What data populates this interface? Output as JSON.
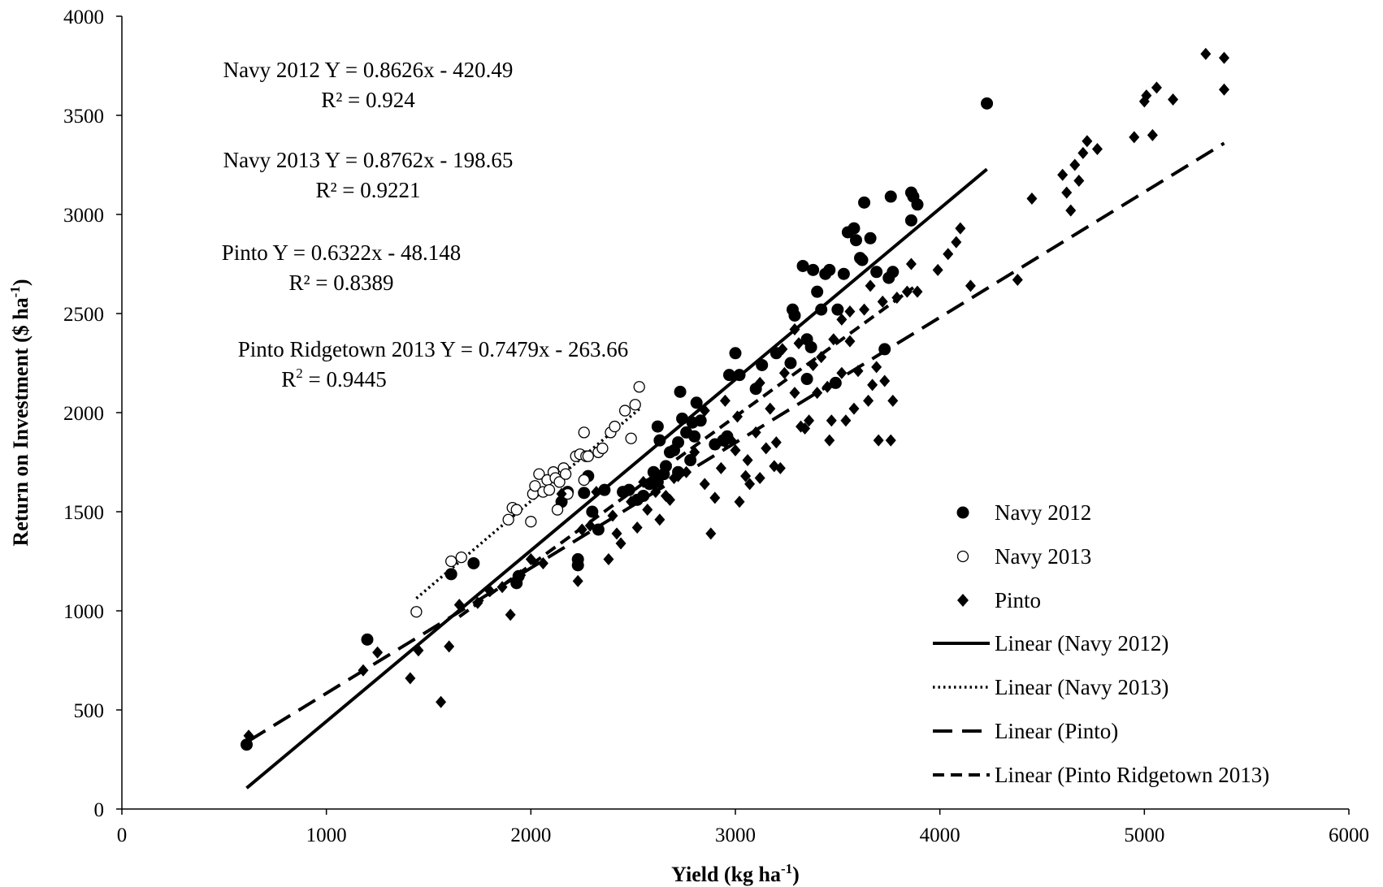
{
  "chart_data": {
    "type": "scatter",
    "title": "",
    "xlabel": "Yield (kg ha",
    "xlabel_sup": "-1",
    "xlabel_end": ")",
    "ylabel": "Return on Investment ($ ha",
    "ylabel_sup": "-1",
    "ylabel_end": ")",
    "xlim": [
      0,
      6000
    ],
    "ylim": [
      0,
      4000
    ],
    "xticks": [
      "0",
      "1000",
      "2000",
      "3000",
      "4000",
      "5000",
      "6000"
    ],
    "yticks": [
      "0",
      "500",
      "1000",
      "1500",
      "2000",
      "2500",
      "3000",
      "3500",
      "4000"
    ],
    "grid": false,
    "legend_position": "bottom-right",
    "annotations": [
      {
        "line1": "Navy 2012 Y = 0.8626x - 420.49",
        "line2": "R² = 0.924"
      },
      {
        "line1": "Navy 2013 Y = 0.8762x - 198.65",
        "line2": "R² = 0.9221"
      },
      {
        "line1": "Pinto Y = 0.6322x - 48.148",
        "line2": "R² = 0.8389"
      },
      {
        "line1": "Pinto Ridgetown 2013 Y = 0.7479x - 263.66",
        "line2_pre": "R",
        "line2_sup": "2",
        "line2_post": " = 0.9445"
      }
    ],
    "series": [
      {
        "name": "Navy 2012",
        "marker": "filled-circle",
        "points": [
          [
            610,
            325
          ],
          [
            1200,
            855
          ],
          [
            1610,
            1185
          ],
          [
            1720,
            1240
          ],
          [
            1930,
            1140
          ],
          [
            1940,
            1175
          ],
          [
            2150,
            1550
          ],
          [
            2180,
            1600
          ],
          [
            2230,
            1260
          ],
          [
            2230,
            1230
          ],
          [
            2260,
            1595
          ],
          [
            2280,
            1680
          ],
          [
            2300,
            1500
          ],
          [
            2330,
            1410
          ],
          [
            2360,
            1610
          ],
          [
            2450,
            1600
          ],
          [
            2480,
            1610
          ],
          [
            2520,
            1560
          ],
          [
            2550,
            1580
          ],
          [
            2580,
            1640
          ],
          [
            2600,
            1700
          ],
          [
            2620,
            1650
          ],
          [
            2650,
            1690
          ],
          [
            2660,
            1730
          ],
          [
            2680,
            1800
          ],
          [
            2700,
            1810
          ],
          [
            2720,
            1850
          ],
          [
            2720,
            1700
          ],
          [
            2740,
            1970
          ],
          [
            2760,
            1900
          ],
          [
            2780,
            1760
          ],
          [
            2790,
            1950
          ],
          [
            2800,
            1880
          ],
          [
            2810,
            2050
          ],
          [
            2830,
            1960
          ],
          [
            2730,
            2105
          ],
          [
            2630,
            1860
          ],
          [
            2620,
            1930
          ],
          [
            2900,
            1840
          ],
          [
            2940,
            1860
          ],
          [
            2960,
            1880
          ],
          [
            2970,
            2190
          ],
          [
            3000,
            2300
          ],
          [
            3020,
            2190
          ],
          [
            3100,
            2120
          ],
          [
            3130,
            2240
          ],
          [
            3200,
            2300
          ],
          [
            3270,
            2250
          ],
          [
            3280,
            2520
          ],
          [
            3290,
            2490
          ],
          [
            3330,
            2740
          ],
          [
            3350,
            2170
          ],
          [
            3350,
            2370
          ],
          [
            3370,
            2330
          ],
          [
            3380,
            2720
          ],
          [
            3400,
            2610
          ],
          [
            3420,
            2520
          ],
          [
            3440,
            2700
          ],
          [
            3460,
            2720
          ],
          [
            3490,
            2150
          ],
          [
            3500,
            2520
          ],
          [
            3530,
            2700
          ],
          [
            3550,
            2910
          ],
          [
            3580,
            2930
          ],
          [
            3590,
            2870
          ],
          [
            3610,
            2780
          ],
          [
            3620,
            2770
          ],
          [
            3630,
            3060
          ],
          [
            3660,
            2880
          ],
          [
            3690,
            2710
          ],
          [
            3730,
            2320
          ],
          [
            3750,
            2680
          ],
          [
            3760,
            3090
          ],
          [
            3770,
            2710
          ],
          [
            3860,
            3110
          ],
          [
            3870,
            3090
          ],
          [
            3860,
            2970
          ],
          [
            3890,
            3050
          ],
          [
            4230,
            3560
          ]
        ]
      },
      {
        "name": "Navy 2013",
        "marker": "open-circle",
        "points": [
          [
            1440,
            995
          ],
          [
            1610,
            1250
          ],
          [
            1660,
            1270
          ],
          [
            1890,
            1460
          ],
          [
            1910,
            1520
          ],
          [
            1930,
            1510
          ],
          [
            2000,
            1450
          ],
          [
            2010,
            1590
          ],
          [
            2020,
            1630
          ],
          [
            2040,
            1690
          ],
          [
            2060,
            1600
          ],
          [
            2080,
            1660
          ],
          [
            2090,
            1610
          ],
          [
            2110,
            1700
          ],
          [
            2120,
            1670
          ],
          [
            2130,
            1510
          ],
          [
            2140,
            1650
          ],
          [
            2160,
            1720
          ],
          [
            2170,
            1690
          ],
          [
            2220,
            1780
          ],
          [
            2240,
            1790
          ],
          [
            2260,
            1900
          ],
          [
            2270,
            1780
          ],
          [
            2280,
            1780
          ],
          [
            2330,
            1800
          ],
          [
            2350,
            1820
          ],
          [
            2390,
            1900
          ],
          [
            2410,
            1930
          ],
          [
            2460,
            2010
          ],
          [
            2490,
            1870
          ],
          [
            2510,
            2040
          ],
          [
            2530,
            2130
          ],
          [
            2260,
            1660
          ],
          [
            2180,
            1590
          ]
        ]
      },
      {
        "name": "Pinto",
        "marker": "diamond",
        "points": [
          [
            620,
            370
          ],
          [
            1180,
            700
          ],
          [
            1250,
            790
          ],
          [
            1410,
            660
          ],
          [
            1450,
            800
          ],
          [
            1560,
            540
          ],
          [
            1600,
            820
          ],
          [
            1650,
            1030
          ],
          [
            1740,
            1040
          ],
          [
            1800,
            1100
          ],
          [
            1860,
            1120
          ],
          [
            1900,
            980
          ],
          [
            1950,
            1180
          ],
          [
            2000,
            1260
          ],
          [
            2060,
            1240
          ],
          [
            2150,
            1590
          ],
          [
            2230,
            1150
          ],
          [
            2250,
            1410
          ],
          [
            2290,
            1430
          ],
          [
            2320,
            1600
          ],
          [
            2380,
            1260
          ],
          [
            2400,
            1480
          ],
          [
            2420,
            1390
          ],
          [
            2440,
            1340
          ],
          [
            2460,
            1600
          ],
          [
            2490,
            1550
          ],
          [
            2520,
            1420
          ],
          [
            2550,
            1650
          ],
          [
            2570,
            1510
          ],
          [
            2610,
            1600
          ],
          [
            2630,
            1460
          ],
          [
            2660,
            1580
          ],
          [
            2680,
            1560
          ],
          [
            2720,
            1680
          ],
          [
            2760,
            1700
          ],
          [
            2800,
            1800
          ],
          [
            2850,
            1640
          ],
          [
            2880,
            1390
          ],
          [
            2900,
            1570
          ],
          [
            2930,
            1720
          ],
          [
            2950,
            1850
          ],
          [
            2980,
            1860
          ],
          [
            3000,
            1810
          ],
          [
            3020,
            1550
          ],
          [
            3050,
            1680
          ],
          [
            3060,
            1760
          ],
          [
            3070,
            1640
          ],
          [
            3100,
            1900
          ],
          [
            3120,
            1670
          ],
          [
            3150,
            1820
          ],
          [
            3170,
            2020
          ],
          [
            3190,
            1730
          ],
          [
            3200,
            1850
          ],
          [
            3220,
            1720
          ],
          [
            3240,
            2200
          ],
          [
            3290,
            2100
          ],
          [
            3320,
            1930
          ],
          [
            3340,
            1920
          ],
          [
            3360,
            1960
          ],
          [
            3380,
            2240
          ],
          [
            3400,
            2100
          ],
          [
            3420,
            2280
          ],
          [
            3450,
            2130
          ],
          [
            3460,
            1860
          ],
          [
            3470,
            1960
          ],
          [
            3520,
            2200
          ],
          [
            3540,
            1960
          ],
          [
            3560,
            2360
          ],
          [
            3600,
            2210
          ],
          [
            3630,
            2520
          ],
          [
            3650,
            2060
          ],
          [
            3670,
            2140
          ],
          [
            3690,
            2230
          ],
          [
            3700,
            1860
          ],
          [
            3730,
            2160
          ],
          [
            3760,
            1860
          ],
          [
            3770,
            2060
          ],
          [
            3790,
            2580
          ],
          [
            3840,
            2610
          ],
          [
            3860,
            2750
          ],
          [
            3890,
            2610
          ],
          [
            3990,
            2720
          ],
          [
            4040,
            2800
          ],
          [
            4080,
            2860
          ],
          [
            4100,
            2930
          ],
          [
            4150,
            2640
          ],
          [
            4380,
            2670
          ],
          [
            4450,
            3080
          ],
          [
            4600,
            3200
          ],
          [
            4620,
            3110
          ],
          [
            4640,
            3020
          ],
          [
            4660,
            3250
          ],
          [
            4680,
            3170
          ],
          [
            4700,
            3310
          ],
          [
            4720,
            3370
          ],
          [
            4770,
            3330
          ],
          [
            4950,
            3390
          ],
          [
            5000,
            3570
          ],
          [
            5010,
            3600
          ],
          [
            5040,
            3400
          ],
          [
            5060,
            3640
          ],
          [
            5140,
            3580
          ],
          [
            5300,
            3810
          ],
          [
            5390,
            3790
          ],
          [
            5390,
            3630
          ],
          [
            2950,
            2060
          ],
          [
            3010,
            1980
          ],
          [
            2850,
            2010
          ],
          [
            3120,
            2150
          ],
          [
            3230,
            2320
          ],
          [
            3290,
            2420
          ],
          [
            3310,
            2350
          ],
          [
            3480,
            2370
          ],
          [
            3520,
            2470
          ],
          [
            3560,
            2510
          ],
          [
            3660,
            2640
          ],
          [
            3720,
            2560
          ],
          [
            3580,
            2020
          ],
          [
            2700,
            1670
          ]
        ]
      }
    ],
    "trendlines": [
      {
        "name": "Linear (Navy 2012)",
        "style": "solid",
        "slope": 0.8626,
        "intercept": -420.49,
        "x_range": [
          610,
          4230
        ]
      },
      {
        "name": "Linear (Navy 2013)",
        "style": "dotted",
        "slope": 0.8762,
        "intercept": -198.65,
        "x_range": [
          1440,
          2530
        ]
      },
      {
        "name": "Linear (Pinto)",
        "style": "long-dash",
        "slope": 0.6322,
        "intercept": -48.148,
        "x_range": [
          620,
          5390
        ]
      },
      {
        "name": "Linear (Pinto Ridgetown 2013)",
        "style": "dash",
        "slope": 0.7479,
        "intercept": -263.66,
        "x_range": [
          1650,
          3870
        ]
      }
    ]
  }
}
